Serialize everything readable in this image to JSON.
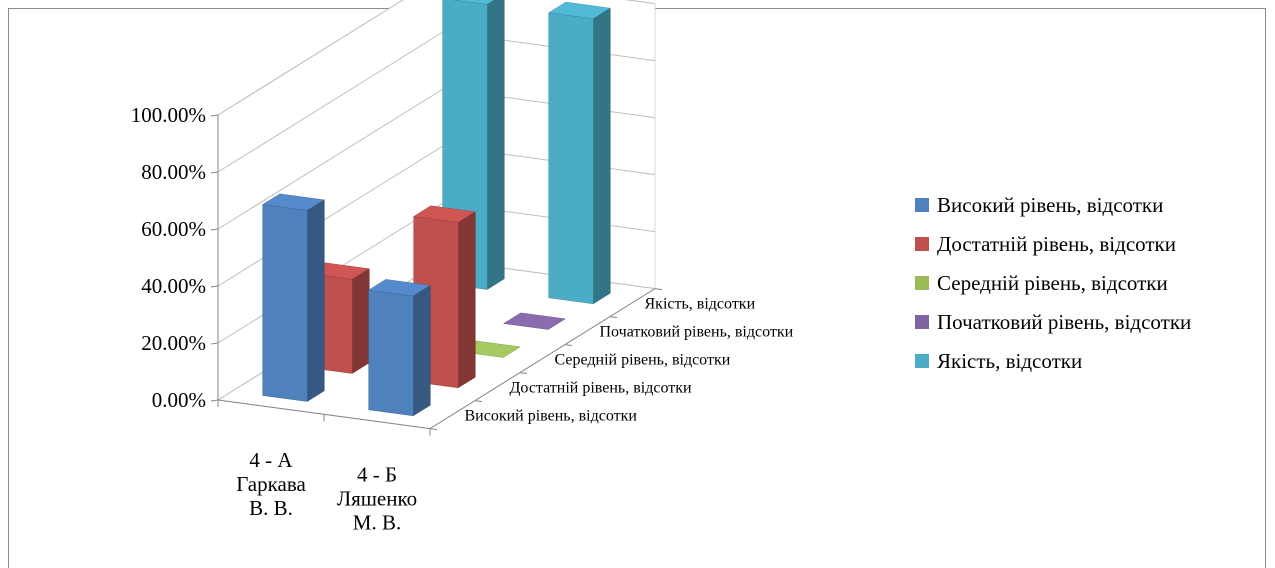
{
  "chart_data": {
    "type": "bar",
    "subtype": "3d-column",
    "categories": [
      "4 - А Гаркава В. В.",
      "4 - Б Ляшенко М. В."
    ],
    "category_lines": [
      [
        "4 - А",
        "Гаркава",
        "В. В."
      ],
      [
        "4 - Б",
        "Ляшенко",
        "М. В."
      ]
    ],
    "series": [
      {
        "name": "Високий рівень, відсотки",
        "values": [
          67,
          42
        ],
        "color": "#4f81bd"
      },
      {
        "name": "Достатній рівень, відсотки",
        "values": [
          33,
          58
        ],
        "color": "#c0504d"
      },
      {
        "name": "Середній рівень, відсотки",
        "values": [
          0,
          0
        ],
        "color": "#9bbb59"
      },
      {
        "name": "Початковий рівень, відсотки",
        "values": [
          0,
          0
        ],
        "color": "#8064a2"
      },
      {
        "name": "Якість, відсотки",
        "values": [
          100,
          100
        ],
        "color": "#4bacc6"
      }
    ],
    "y_ticks": [
      "0.00%",
      "20.00%",
      "40.00%",
      "60.00%",
      "80.00%",
      "100.00%"
    ],
    "ylim": [
      0,
      100
    ],
    "y_unit": "%",
    "depth_labels": [
      "Високий рівень, відсотки",
      "Достатній рівень, відсотки",
      "Середній рівень, відсотки",
      "Початковий рівень, відсотки",
      "Якість, відсотки"
    ],
    "legend": {
      "position": "right"
    },
    "grid": true
  }
}
